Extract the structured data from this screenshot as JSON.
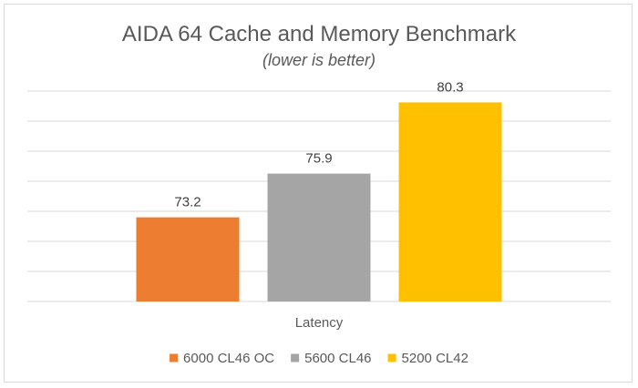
{
  "chart_data": {
    "type": "bar",
    "title": "AIDA 64 Cache and Memory Benchmark",
    "subtitle": "(lower is better)",
    "categories": [
      "Latency"
    ],
    "series": [
      {
        "name": "6000 CL46 OC",
        "values": [
          73.2
        ],
        "color": "#ed7d31"
      },
      {
        "name": "5600 CL46",
        "values": [
          75.9
        ],
        "color": "#a5a5a5"
      },
      {
        "name": "5200 CL42",
        "values": [
          80.3
        ],
        "color": "#ffc000"
      }
    ],
    "xlabel": "",
    "ylabel": "",
    "ylim": [
      68,
      81
    ],
    "gridlines": true,
    "gridline_color": "#d9d9d9",
    "legend": "bottom"
  }
}
